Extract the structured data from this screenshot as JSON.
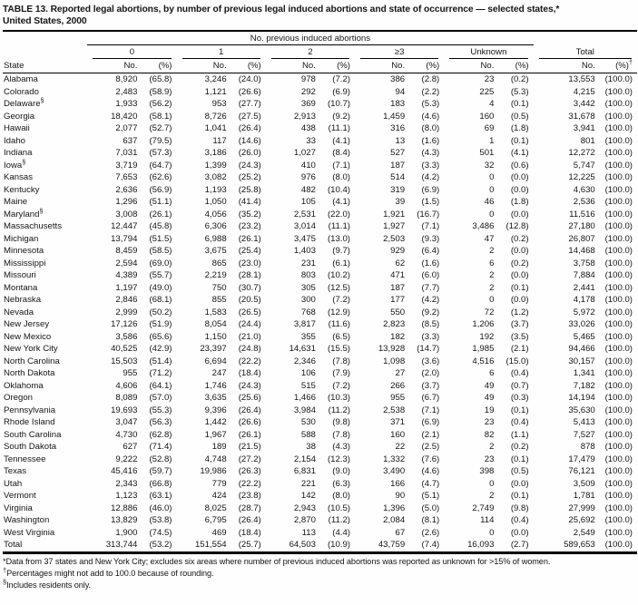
{
  "title": {
    "line1": "TABLE 13. Reported legal abortions, by number of previous legal induced abortions and state of occurrence — selected states,*",
    "line2": "United States, 2000"
  },
  "table": {
    "spanner": "No. previous induced abortions",
    "state_header": "State",
    "groups": [
      "0",
      "1",
      "2",
      "≥3",
      "Unknown",
      "Total"
    ],
    "subheads": [
      "No.",
      "(%)",
      "No.",
      "(%)",
      "No.",
      "(%)",
      "No.",
      "(%)",
      "No.",
      "(%)",
      "No.",
      "(%)"
    ],
    "dagger": "†",
    "rows": [
      {
        "state": "Alabama",
        "sup": "",
        "cells": [
          "8,920",
          "(65.8)",
          "3,246",
          "(24.0)",
          "978",
          "(7.2)",
          "386",
          "(2.8)",
          "23",
          "(0.2)",
          "13,553",
          "(100.0)"
        ]
      },
      {
        "state": "Colorado",
        "sup": "",
        "cells": [
          "2,483",
          "(58.9)",
          "1,121",
          "(26.6)",
          "292",
          "(6.9)",
          "94",
          "(2.2)",
          "225",
          "(5.3)",
          "4,215",
          "(100.0)"
        ]
      },
      {
        "state": "Delaware",
        "sup": "§",
        "cells": [
          "1,933",
          "(56.2)",
          "953",
          "(27.7)",
          "369",
          "(10.7)",
          "183",
          "(5.3)",
          "4",
          "(0.1)",
          "3,442",
          "(100.0)"
        ]
      },
      {
        "state": "Georgia",
        "sup": "",
        "cells": [
          "18,420",
          "(58.1)",
          "8,726",
          "(27.5)",
          "2,913",
          "(9.2)",
          "1,459",
          "(4.6)",
          "160",
          "(0.5)",
          "31,678",
          "(100.0)"
        ]
      },
      {
        "state": "Hawaii",
        "sup": "",
        "cells": [
          "2,077",
          "(52.7)",
          "1,041",
          "(26.4)",
          "438",
          "(11.1)",
          "316",
          "(8.0)",
          "69",
          "(1.8)",
          "3,941",
          "(100.0)"
        ]
      },
      {
        "state": "Idaho",
        "sup": "",
        "cells": [
          "637",
          "(79.5)",
          "117",
          "(14.6)",
          "33",
          "(4.1)",
          "13",
          "(1.6)",
          "1",
          "(0.1)",
          "801",
          "(100.0)"
        ]
      },
      {
        "state": "Indiana",
        "sup": "",
        "cells": [
          "7,031",
          "(57.3)",
          "3,186",
          "(26.0)",
          "1,027",
          "(8.4)",
          "527",
          "(4.3)",
          "501",
          "(4.1)",
          "12,272",
          "(100.0)"
        ]
      },
      {
        "state": "Iowa",
        "sup": "§",
        "cells": [
          "3,719",
          "(64.7)",
          "1,399",
          "(24.3)",
          "410",
          "(7.1)",
          "187",
          "(3.3)",
          "32",
          "(0.6)",
          "5,747",
          "(100.0)"
        ]
      },
      {
        "state": "Kansas",
        "sup": "",
        "cells": [
          "7,653",
          "(62.6)",
          "3,082",
          "(25.2)",
          "976",
          "(8.0)",
          "514",
          "(4.2)",
          "0",
          "(0.0)",
          "12,225",
          "(100.0)"
        ]
      },
      {
        "state": "Kentucky",
        "sup": "",
        "cells": [
          "2,636",
          "(56.9)",
          "1,193",
          "(25.8)",
          "482",
          "(10.4)",
          "319",
          "(6.9)",
          "0",
          "(0.0)",
          "4,630",
          "(100.0)"
        ]
      },
      {
        "state": "Maine",
        "sup": "",
        "cells": [
          "1,296",
          "(51.1)",
          "1,050",
          "(41.4)",
          "105",
          "(4.1)",
          "39",
          "(1.5)",
          "46",
          "(1.8)",
          "2,536",
          "(100.0)"
        ]
      },
      {
        "state": "Maryland",
        "sup": "§",
        "cells": [
          "3,008",
          "(26.1)",
          "4,056",
          "(35.2)",
          "2,531",
          "(22.0)",
          "1,921",
          "(16.7)",
          "0",
          "(0.0)",
          "11,516",
          "(100.0)"
        ]
      },
      {
        "state": "Massachusetts",
        "sup": "",
        "cells": [
          "12,447",
          "(45.8)",
          "6,306",
          "(23.2)",
          "3,014",
          "(11.1)",
          "1,927",
          "(7.1)",
          "3,486",
          "(12.8)",
          "27,180",
          "(100.0)"
        ]
      },
      {
        "state": "Michigan",
        "sup": "",
        "cells": [
          "13,794",
          "(51.5)",
          "6,988",
          "(26.1)",
          "3,475",
          "(13.0)",
          "2,503",
          "(9.3)",
          "47",
          "(0.2)",
          "26,807",
          "(100.0)"
        ]
      },
      {
        "state": "Minnesota",
        "sup": "",
        "cells": [
          "8,459",
          "(58.5)",
          "3,675",
          "(25.4)",
          "1,403",
          "(9.7)",
          "929",
          "(6.4)",
          "2",
          "(0.0)",
          "14,468",
          "(100.0)"
        ]
      },
      {
        "state": "Mississippi",
        "sup": "",
        "cells": [
          "2,594",
          "(69.0)",
          "865",
          "(23.0)",
          "231",
          "(6.1)",
          "62",
          "(1.6)",
          "6",
          "(0.2)",
          "3,758",
          "(100.0)"
        ]
      },
      {
        "state": "Missouri",
        "sup": "",
        "cells": [
          "4,389",
          "(55.7)",
          "2,219",
          "(28.1)",
          "803",
          "(10.2)",
          "471",
          "(6.0)",
          "2",
          "(0.0)",
          "7,884",
          "(100.0)"
        ]
      },
      {
        "state": "Montana",
        "sup": "",
        "cells": [
          "1,197",
          "(49.0)",
          "750",
          "(30.7)",
          "305",
          "(12.5)",
          "187",
          "(7.7)",
          "2",
          "(0.1)",
          "2,441",
          "(100.0)"
        ]
      },
      {
        "state": "Nebraska",
        "sup": "",
        "cells": [
          "2,846",
          "(68.1)",
          "855",
          "(20.5)",
          "300",
          "(7.2)",
          "177",
          "(4.2)",
          "0",
          "(0.0)",
          "4,178",
          "(100.0)"
        ]
      },
      {
        "state": "Nevada",
        "sup": "",
        "cells": [
          "2,999",
          "(50.2)",
          "1,583",
          "(26.5)",
          "768",
          "(12.9)",
          "550",
          "(9.2)",
          "72",
          "(1.2)",
          "5,972",
          "(100.0)"
        ]
      },
      {
        "state": "New Jersey",
        "sup": "",
        "cells": [
          "17,126",
          "(51.9)",
          "8,054",
          "(24.4)",
          "3,817",
          "(11.6)",
          "2,823",
          "(8.5)",
          "1,206",
          "(3.7)",
          "33,026",
          "(100.0)"
        ]
      },
      {
        "state": "New Mexico",
        "sup": "",
        "cells": [
          "3,586",
          "(65.6)",
          "1,150",
          "(21.0)",
          "355",
          "(6.5)",
          "182",
          "(3.3)",
          "192",
          "(3.5)",
          "5,465",
          "(100.0)"
        ]
      },
      {
        "state": "New York City",
        "sup": "",
        "cells": [
          "40,525",
          "(42.9)",
          "23,397",
          "(24.8)",
          "14,631",
          "(15.5)",
          "13,928",
          "(14.7)",
          "1,985",
          "(2.1)",
          "94,466",
          "(100.0)"
        ]
      },
      {
        "state": "North Carolina",
        "sup": "",
        "cells": [
          "15,503",
          "(51.4)",
          "6,694",
          "(22.2)",
          "2,346",
          "(7.8)",
          "1,098",
          "(3.6)",
          "4,516",
          "(15.0)",
          "30,157",
          "(100.0)"
        ]
      },
      {
        "state": "North Dakota",
        "sup": "",
        "cells": [
          "955",
          "(71.2)",
          "247",
          "(18.4)",
          "106",
          "(7.9)",
          "27",
          "(2.0)",
          "6",
          "(0.4)",
          "1,341",
          "(100.0)"
        ]
      },
      {
        "state": "Oklahoma",
        "sup": "",
        "cells": [
          "4,606",
          "(64.1)",
          "1,746",
          "(24.3)",
          "515",
          "(7.2)",
          "266",
          "(3.7)",
          "49",
          "(0.7)",
          "7,182",
          "(100.0)"
        ]
      },
      {
        "state": "Oregon",
        "sup": "",
        "cells": [
          "8,089",
          "(57.0)",
          "3,635",
          "(25.6)",
          "1,466",
          "(10.3)",
          "955",
          "(6.7)",
          "49",
          "(0.3)",
          "14,194",
          "(100.0)"
        ]
      },
      {
        "state": "Pennsylvania",
        "sup": "",
        "cells": [
          "19,693",
          "(55.3)",
          "9,396",
          "(26.4)",
          "3,984",
          "(11.2)",
          "2,538",
          "(7.1)",
          "19",
          "(0.1)",
          "35,630",
          "(100.0)"
        ]
      },
      {
        "state": "Rhode Island",
        "sup": "",
        "cells": [
          "3,047",
          "(56.3)",
          "1,442",
          "(26.6)",
          "530",
          "(9.8)",
          "371",
          "(6.9)",
          "23",
          "(0.4)",
          "5,413",
          "(100.0)"
        ]
      },
      {
        "state": "South Carolina",
        "sup": "",
        "cells": [
          "4,730",
          "(62.8)",
          "1,967",
          "(26.1)",
          "588",
          "(7.8)",
          "160",
          "(2.1)",
          "82",
          "(1.1)",
          "7,527",
          "(100.0)"
        ]
      },
      {
        "state": "South Dakota",
        "sup": "",
        "cells": [
          "627",
          "(71.4)",
          "189",
          "(21.5)",
          "38",
          "(4.3)",
          "22",
          "(2.5)",
          "2",
          "(0.2)",
          "878",
          "(100.0)"
        ]
      },
      {
        "state": "Tennessee",
        "sup": "",
        "cells": [
          "9,222",
          "(52.8)",
          "4,748",
          "(27.2)",
          "2,154",
          "(12.3)",
          "1,332",
          "(7.6)",
          "23",
          "(0.1)",
          "17,479",
          "(100.0)"
        ]
      },
      {
        "state": "Texas",
        "sup": "",
        "cells": [
          "45,416",
          "(59.7)",
          "19,986",
          "(26.3)",
          "6,831",
          "(9.0)",
          "3,490",
          "(4.6)",
          "398",
          "(0.5)",
          "76,121",
          "(100.0)"
        ]
      },
      {
        "state": "Utah",
        "sup": "",
        "cells": [
          "2,343",
          "(66.8)",
          "779",
          "(22.2)",
          "221",
          "(6.3)",
          "166",
          "(4.7)",
          "0",
          "(0.0)",
          "3,509",
          "(100.0)"
        ]
      },
      {
        "state": "Vermont",
        "sup": "",
        "cells": [
          "1,123",
          "(63.1)",
          "424",
          "(23.8)",
          "142",
          "(8.0)",
          "90",
          "(5.1)",
          "2",
          "(0.1)",
          "1,781",
          "(100.0)"
        ]
      },
      {
        "state": "Virginia",
        "sup": "",
        "cells": [
          "12,886",
          "(46.0)",
          "8,025",
          "(28.7)",
          "2,943",
          "(10.5)",
          "1,396",
          "(5.0)",
          "2,749",
          "(9.8)",
          "27,999",
          "(100.0)"
        ]
      },
      {
        "state": "Washington",
        "sup": "",
        "cells": [
          "13,829",
          "(53.8)",
          "6,795",
          "(26.4)",
          "2,870",
          "(11.2)",
          "2,084",
          "(8.1)",
          "114",
          "(0.4)",
          "25,692",
          "(100.0)"
        ]
      },
      {
        "state": "West Virginia",
        "sup": "",
        "cells": [
          "1,900",
          "(74.5)",
          "469",
          "(18.4)",
          "113",
          "(4.4)",
          "67",
          "(2.6)",
          "0",
          "(0.0)",
          "2,549",
          "(100.0)"
        ]
      },
      {
        "state": "Total",
        "sup": "",
        "cells": [
          "313,744",
          "(53.2)",
          "151,554",
          "(25.7)",
          "64,503",
          "(10.9)",
          "43,759",
          "(7.4)",
          "16,093",
          "(2.7)",
          "589,653",
          "(100.0)"
        ]
      }
    ]
  },
  "footnotes": [
    {
      "symbol": "*",
      "text": "Data from 37 states and New York City; excludes six areas where number of previous induced abortions was reported as unknown for >15% of women."
    },
    {
      "symbol": "†",
      "text": "Percentages might not add to 100.0 because of rounding."
    },
    {
      "symbol": "§",
      "text": "Includes residents only."
    }
  ]
}
